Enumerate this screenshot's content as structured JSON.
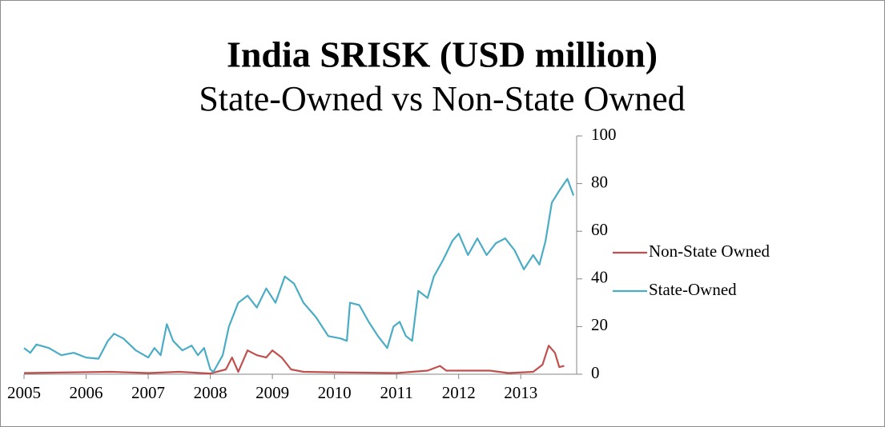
{
  "chart_data": {
    "type": "line",
    "title": "India SRISK (USD million)",
    "subtitle": "State-Owned vs Non-State Owned",
    "xlim": [
      2005,
      2013.9
    ],
    "xticks": [
      2005,
      2006,
      2007,
      2008,
      2009,
      2010,
      2011,
      2012,
      2013
    ],
    "ylim": [
      0,
      100
    ],
    "yticks": [
      0,
      20,
      40,
      60,
      80,
      100
    ],
    "legend": "right",
    "series": [
      {
        "name": "Non-State Owned",
        "color": "#c0504d",
        "x": [
          2005,
          2006.4,
          2007,
          2007.5,
          2008,
          2008.25,
          2008.35,
          2008.45,
          2008.6,
          2008.75,
          2008.9,
          2009.0,
          2009.15,
          2009.3,
          2009.5,
          2010,
          2011,
          2011.5,
          2011.7,
          2011.8,
          2012.5,
          2012.8,
          2013.2,
          2013.35,
          2013.45,
          2013.55,
          2013.62,
          2013.7
        ],
        "values": [
          0.5,
          1,
          0.5,
          1,
          0.3,
          2,
          7,
          1,
          10,
          8,
          7,
          10,
          7,
          2,
          1,
          0.8,
          0.5,
          1.5,
          3.5,
          1.5,
          1.5,
          0.5,
          1,
          4,
          12,
          9,
          3,
          3.5
        ]
      },
      {
        "name": "State-Owned",
        "color": "#4bacc6",
        "x": [
          2005.0,
          2005.1,
          2005.2,
          2005.4,
          2005.6,
          2005.8,
          2006.0,
          2006.2,
          2006.35,
          2006.45,
          2006.6,
          2006.8,
          2007.0,
          2007.1,
          2007.2,
          2007.3,
          2007.4,
          2007.55,
          2007.7,
          2007.8,
          2007.9,
          2008.0,
          2008.05,
          2008.2,
          2008.3,
          2008.45,
          2008.6,
          2008.75,
          2008.9,
          2009.05,
          2009.2,
          2009.35,
          2009.5,
          2009.7,
          2009.9,
          2010.1,
          2010.2,
          2010.25,
          2010.4,
          2010.55,
          2010.7,
          2010.85,
          2010.95,
          2011.05,
          2011.15,
          2011.25,
          2011.35,
          2011.5,
          2011.6,
          2011.75,
          2011.9,
          2012.0,
          2012.15,
          2012.3,
          2012.45,
          2012.6,
          2012.75,
          2012.9,
          2013.05,
          2013.2,
          2013.3,
          2013.4,
          2013.5,
          2013.62,
          2013.75,
          2013.85
        ],
        "values": [
          11,
          9,
          12.5,
          11,
          8,
          9,
          7,
          6.5,
          14,
          17,
          15,
          10,
          7,
          11,
          8,
          21,
          14,
          10,
          12,
          8,
          11,
          2,
          1,
          8,
          20,
          30,
          33,
          28,
          36,
          30,
          41,
          38,
          30,
          24,
          16,
          15,
          14,
          30,
          29,
          22,
          16,
          11,
          20,
          22,
          16,
          14,
          35,
          32,
          41,
          48,
          56,
          59,
          50,
          57,
          50,
          55,
          57,
          52,
          44,
          50,
          46,
          56,
          72,
          77,
          82,
          75
        ]
      }
    ]
  }
}
